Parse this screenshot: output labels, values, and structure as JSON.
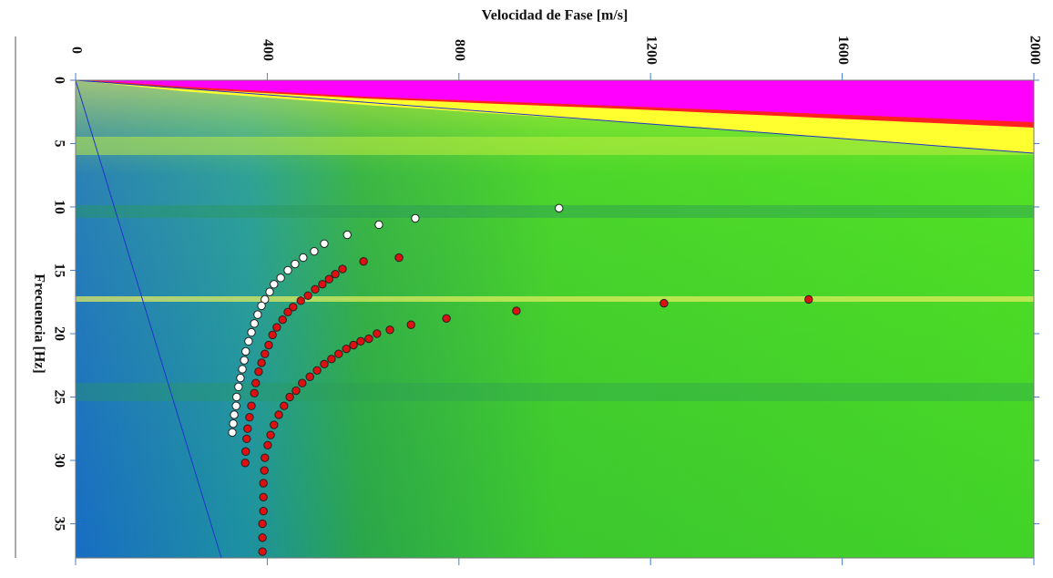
{
  "chart_data": {
    "type": "scatter",
    "title": "Velocidad de Fase [m/s]",
    "y_label": "Frecuencia [Hz]",
    "xlim": [
      0,
      2000
    ],
    "xticks": [
      0,
      400,
      800,
      1200,
      1600,
      2000
    ],
    "ylim": [
      0,
      37.7
    ],
    "yticks": [
      0,
      5,
      10,
      15,
      20,
      25,
      30,
      35
    ],
    "y_inverted": true,
    "series": [
      {
        "color": "#ffffff",
        "x": [
          1009,
          709,
          633,
          567,
          519,
          498,
          475,
          458,
          443,
          428,
          414,
          405,
          395,
          388,
          380,
          373,
          367,
          361,
          355,
          352,
          348,
          344,
          340,
          336,
          335,
          331,
          329,
          327
        ],
        "values": [
          10.1,
          10.9,
          11.4,
          12.2,
          12.9,
          13.5,
          14.0,
          14.5,
          15.0,
          15.6,
          16.1,
          16.7,
          17.3,
          17.8,
          18.5,
          19.2,
          19.9,
          20.6,
          21.4,
          22.1,
          22.8,
          23.5,
          24.2,
          25.0,
          25.7,
          26.4,
          27.1,
          27.8
        ]
      },
      {
        "color": "#dd1111",
        "x": [
          675,
          601,
          557,
          542,
          529,
          515,
          500,
          485,
          470,
          454,
          443,
          432,
          420,
          411,
          403,
          395,
          388,
          382,
          376,
          373,
          367,
          363,
          359,
          357,
          355,
          354
        ],
        "values": [
          14.0,
          14.3,
          14.9,
          15.3,
          15.7,
          16.1,
          16.5,
          17.0,
          17.4,
          17.9,
          18.3,
          18.9,
          19.5,
          20.1,
          20.9,
          21.6,
          22.3,
          23.0,
          23.9,
          24.7,
          25.7,
          26.6,
          27.5,
          28.3,
          29.3,
          30.2
        ]
      },
      {
        "color": "#dd1111",
        "x": [
          1530,
          1228,
          920,
          774,
          700,
          656,
          629,
          612,
          595,
          580,
          565,
          549,
          534,
          519,
          504,
          489,
          473,
          460,
          447,
          435,
          424,
          414,
          407,
          401,
          395,
          394,
          392,
          392,
          392,
          390,
          390,
          390
        ],
        "values": [
          17.3,
          17.6,
          18.2,
          18.8,
          19.3,
          19.7,
          20.0,
          20.4,
          20.6,
          20.9,
          21.2,
          21.6,
          22.0,
          22.4,
          22.9,
          23.4,
          23.9,
          24.5,
          25.0,
          25.7,
          26.4,
          27.2,
          28.0,
          28.8,
          29.8,
          30.8,
          31.8,
          32.9,
          34.0,
          35.0,
          36.1,
          37.2
        ]
      }
    ]
  }
}
